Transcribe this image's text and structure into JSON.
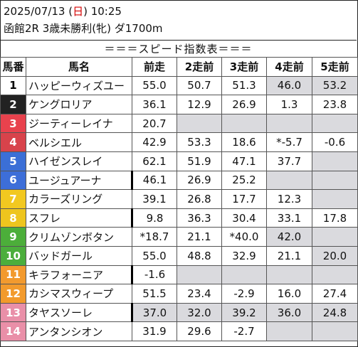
{
  "header": {
    "date_prefix": "2025/07/13 (",
    "day": "日",
    "date_suffix": ") 10:25",
    "race": "函館2R 3歳未勝利(牝) ダ1700m"
  },
  "title": "＝＝＝スピード指数表＝＝＝",
  "columns": [
    "馬番",
    "馬名",
    "前走",
    "2走前",
    "3走前",
    "4走前",
    "5走前"
  ],
  "colors": {
    "gray_cell": "#dadade",
    "day_red": "#d40000"
  },
  "rows": [
    {
      "num": "1",
      "color": "#ffffff",
      "text": "#000000",
      "name": "ハッピーウィズユー",
      "values": [
        "55.0",
        "50.7",
        "51.3",
        "46.0",
        "53.2"
      ],
      "gray": [
        false,
        false,
        false,
        true,
        true
      ],
      "mark": false
    },
    {
      "num": "2",
      "color": "#222222",
      "text": "#ffffff",
      "name": "ケングロリア",
      "values": [
        "36.1",
        "12.9",
        "26.9",
        "1.3",
        "23.8"
      ],
      "gray": [
        false,
        false,
        false,
        false,
        false
      ],
      "mark": false
    },
    {
      "num": "3",
      "color": "#e8424d",
      "text": "#ffffff",
      "name": "ジーティーレイナ",
      "values": [
        "20.7",
        "",
        "",
        "",
        ""
      ],
      "gray": [
        false,
        true,
        true,
        true,
        true
      ],
      "mark": false
    },
    {
      "num": "4",
      "color": "#d8434b",
      "text": "#ffffff",
      "name": "ベルシエル",
      "values": [
        "42.9",
        "53.3",
        "18.6",
        "*-5.7",
        "-0.6"
      ],
      "gray": [
        false,
        false,
        false,
        false,
        false
      ],
      "mark": false
    },
    {
      "num": "5",
      "color": "#3b6fd6",
      "text": "#ffffff",
      "name": "ハイゼンスレイ",
      "values": [
        "62.1",
        "51.9",
        "47.1",
        "37.7",
        ""
      ],
      "gray": [
        false,
        false,
        false,
        false,
        true
      ],
      "mark": false
    },
    {
      "num": "6",
      "color": "#3d6ed8",
      "text": "#ffffff",
      "name": "ユージュアーナ",
      "values": [
        "46.1",
        "26.9",
        "25.2",
        "",
        ""
      ],
      "gray": [
        false,
        false,
        false,
        true,
        true
      ],
      "mark": true
    },
    {
      "num": "7",
      "color": "#f2c820",
      "text": "#ffffff",
      "name": "カラーズリング",
      "values": [
        "39.1",
        "26.8",
        "17.7",
        "12.3",
        ""
      ],
      "gray": [
        false,
        false,
        false,
        false,
        true
      ],
      "mark": false
    },
    {
      "num": "8",
      "color": "#eec51e",
      "text": "#ffffff",
      "name": "スフレ",
      "values": [
        "9.8",
        "36.3",
        "30.4",
        "33.1",
        "17.8"
      ],
      "gray": [
        false,
        false,
        false,
        false,
        false
      ],
      "mark": true
    },
    {
      "num": "9",
      "color": "#4cae3a",
      "text": "#ffffff",
      "name": "クリムゾンボタン",
      "values": [
        "*18.7",
        "21.1",
        "*40.0",
        "42.0",
        ""
      ],
      "gray": [
        false,
        false,
        false,
        true,
        true
      ],
      "mark": false
    },
    {
      "num": "10",
      "color": "#4bae3c",
      "text": "#ffffff",
      "name": "バッドガール",
      "values": [
        "55.0",
        "48.8",
        "32.9",
        "21.1",
        "20.0"
      ],
      "gray": [
        false,
        false,
        false,
        false,
        true
      ],
      "mark": false
    },
    {
      "num": "11",
      "color": "#f29a2e",
      "text": "#ffffff",
      "name": "キラフォーニア",
      "values": [
        "-1.6",
        "",
        "",
        "",
        ""
      ],
      "gray": [
        false,
        true,
        true,
        true,
        true
      ],
      "mark": true
    },
    {
      "num": "12",
      "color": "#f29a2c",
      "text": "#ffffff",
      "name": "カシマスウィープ",
      "values": [
        "51.5",
        "23.4",
        "-2.9",
        "16.0",
        "27.4"
      ],
      "gray": [
        false,
        false,
        false,
        false,
        false
      ],
      "mark": false
    },
    {
      "num": "13",
      "color": "#e98fa8",
      "text": "#ffffff",
      "name": "タヤスソーレ",
      "values": [
        "37.0",
        "32.0",
        "39.2",
        "36.0",
        "24.8"
      ],
      "gray": [
        true,
        true,
        true,
        true,
        true
      ],
      "mark": true
    },
    {
      "num": "14",
      "color": "#e98fa8",
      "text": "#ffffff",
      "name": "アンタンシオン",
      "values": [
        "31.9",
        "29.6",
        "-2.7",
        "",
        ""
      ],
      "gray": [
        false,
        false,
        false,
        true,
        true
      ],
      "mark": false
    }
  ]
}
